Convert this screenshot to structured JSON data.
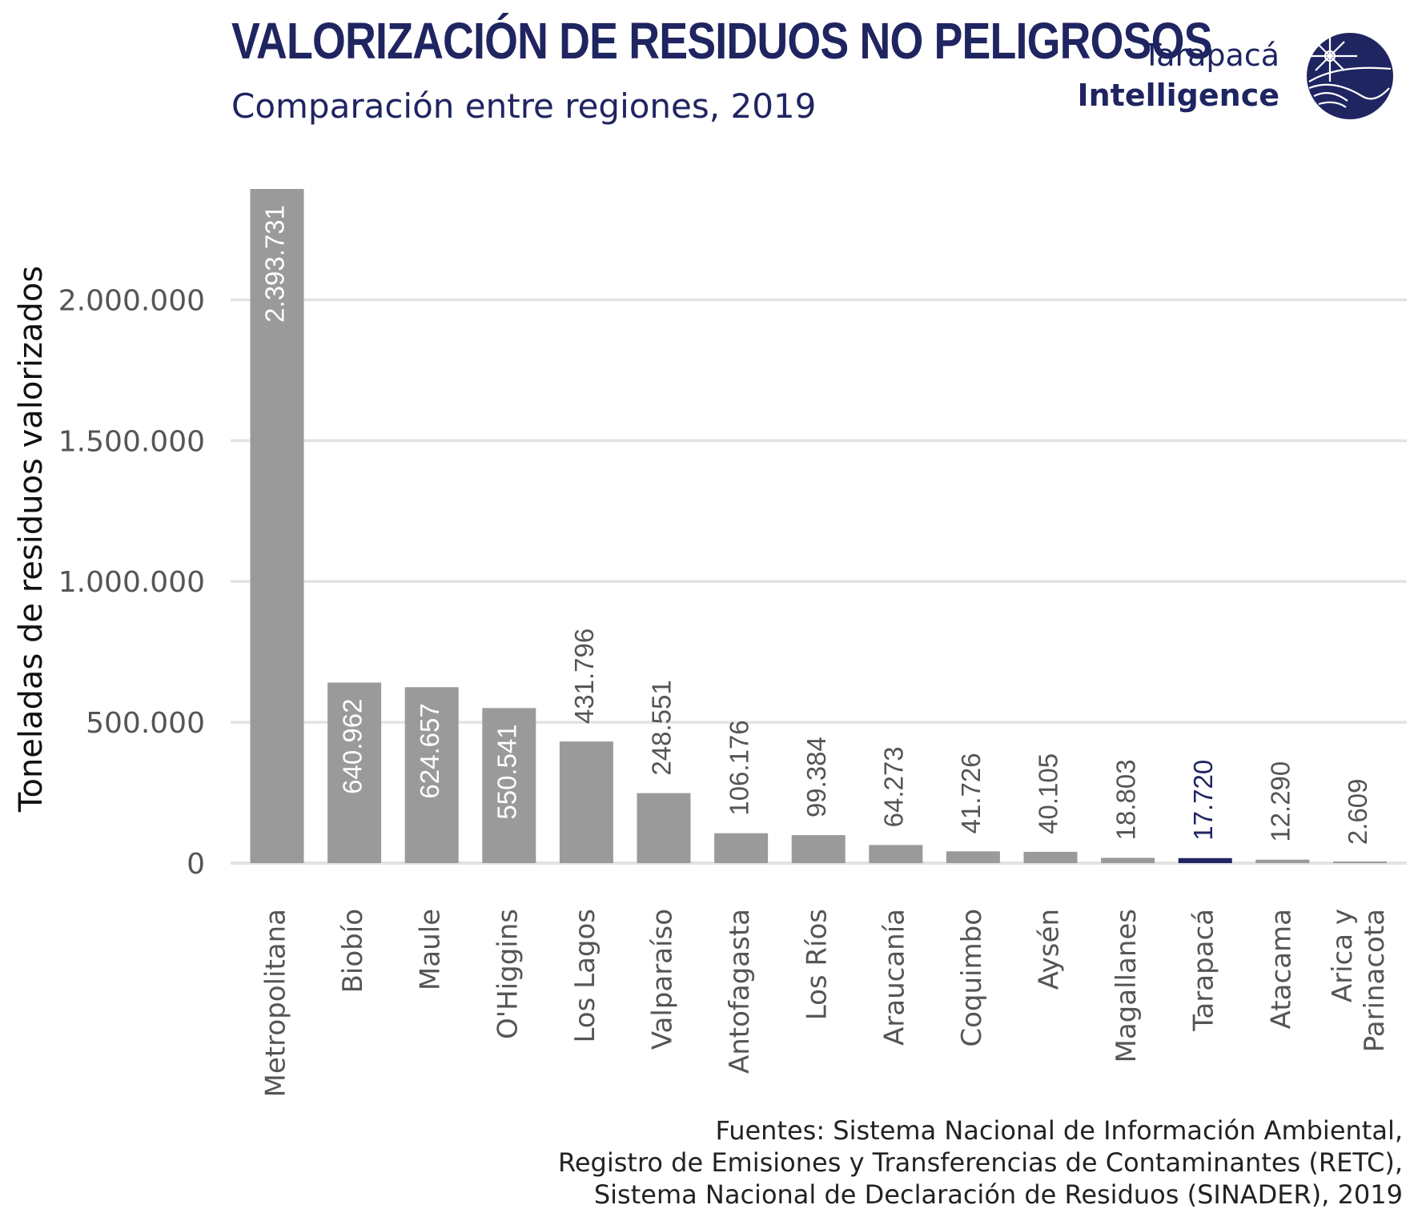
{
  "header": {
    "title": "VALORIZACIÓN DE RESIDUOS NO PELIGROSOS",
    "subtitle": "Comparación entre regiones, 2019"
  },
  "brand": {
    "line1": "Tarapacá",
    "line2": "Intelligence",
    "logo_icon": "globe-emblem-icon"
  },
  "colors": {
    "default_bar": "#9a9a9a",
    "highlight_bar": "#1f2561",
    "grid": "#e3e3e3",
    "text_dark": "#1f2561"
  },
  "chart_data": {
    "type": "bar",
    "title": "VALORIZACIÓN DE RESIDUOS NO PELIGROSOS",
    "subtitle": "Comparación entre regiones, 2019",
    "xlabel": "",
    "ylabel": "Toneladas de residuos valorizados",
    "ylim": [
      0,
      2393731
    ],
    "yticks": [
      0,
      500000,
      1000000,
      1500000,
      2000000
    ],
    "ytick_labels": [
      "0",
      "500.000",
      "1.000.000",
      "1.500.000",
      "2.000.000"
    ],
    "grid": true,
    "highlight": "Tarapacá",
    "categories": [
      "Metropolitana",
      "Biobío",
      "Maule",
      "O'Higgins",
      "Los Lagos",
      "Valparaíso",
      "Antofagasta",
      "Los Ríos",
      "Araucanía",
      "Coquimbo",
      "Aysén",
      "Magallanes",
      "Tarapacá",
      "Atacama",
      "Arica y Parinacota"
    ],
    "values": [
      2393731,
      640962,
      624657,
      550541,
      431796,
      248551,
      106176,
      99384,
      64273,
      41726,
      40105,
      18803,
      17720,
      12290,
      2609
    ],
    "value_labels": [
      "2.393.731",
      "640.962",
      "624.657",
      "550.541",
      "431.796",
      "248.551",
      "106.176",
      "99.384",
      "64.273",
      "41.726",
      "40.105",
      "18.803",
      "17.720",
      "12.290",
      "2.609"
    ]
  },
  "source": {
    "line1": "Fuentes: Sistema Nacional de Información Ambiental,",
    "line2": "Registro de Emisiones y Transferencias de Contaminantes (RETC),",
    "line3": "Sistema Nacional de Declaración de Residuos (SINADER), 2019"
  }
}
